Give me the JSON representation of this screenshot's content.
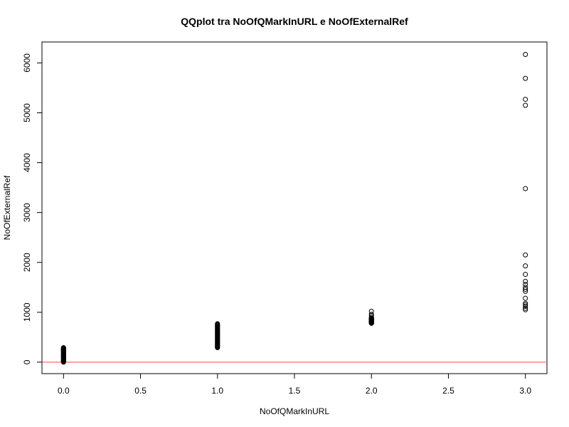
{
  "chart_data": {
    "type": "scatter",
    "title": "QQplot tra NoOfQMarkInURL e NoOfExternalRef",
    "xlabel": "NoOfQMarkInURL",
    "ylabel": "NoOfExternalRef",
    "xlim": [
      -0.14,
      3.14
    ],
    "ylim": [
      -230,
      6420
    ],
    "x_ticks": [
      0.0,
      0.5,
      1.0,
      1.5,
      2.0,
      2.5,
      3.0
    ],
    "x_tick_labels": [
      "0.0",
      "0.5",
      "1.0",
      "1.5",
      "2.0",
      "2.5",
      "3.0"
    ],
    "y_ticks": [
      0,
      1000,
      2000,
      3000,
      4000,
      5000,
      6000
    ],
    "y_tick_labels": [
      "0",
      "1000",
      "2000",
      "3000",
      "4000",
      "5000",
      "6000"
    ],
    "grid": false,
    "legend": "none",
    "marker": "open-circle",
    "point_color": "#000000",
    "reference_line": {
      "type": "horizontal",
      "y": 0,
      "color": "#ff6b6b"
    },
    "dense_ranges": [
      {
        "x": 0,
        "y_min": 0,
        "y_max": 290
      },
      {
        "x": 1,
        "y_min": 290,
        "y_max": 770
      },
      {
        "x": 2,
        "y_min": 780,
        "y_max": 880
      }
    ],
    "points": [
      {
        "x": 2,
        "y": 900
      },
      {
        "x": 2,
        "y": 930
      },
      {
        "x": 2,
        "y": 960
      },
      {
        "x": 2,
        "y": 1020
      },
      {
        "x": 3,
        "y": 1050
      },
      {
        "x": 3,
        "y": 1080
      },
      {
        "x": 3,
        "y": 1120
      },
      {
        "x": 3,
        "y": 1150
      },
      {
        "x": 3,
        "y": 1180
      },
      {
        "x": 3,
        "y": 1280
      },
      {
        "x": 3,
        "y": 1420
      },
      {
        "x": 3,
        "y": 1460
      },
      {
        "x": 3,
        "y": 1500
      },
      {
        "x": 3,
        "y": 1560
      },
      {
        "x": 3,
        "y": 1620
      },
      {
        "x": 3,
        "y": 1760
      },
      {
        "x": 3,
        "y": 1930
      },
      {
        "x": 3,
        "y": 2150
      },
      {
        "x": 3,
        "y": 3480
      },
      {
        "x": 3,
        "y": 5150
      },
      {
        "x": 3,
        "y": 5270
      },
      {
        "x": 3,
        "y": 5690
      },
      {
        "x": 3,
        "y": 6170
      }
    ]
  }
}
